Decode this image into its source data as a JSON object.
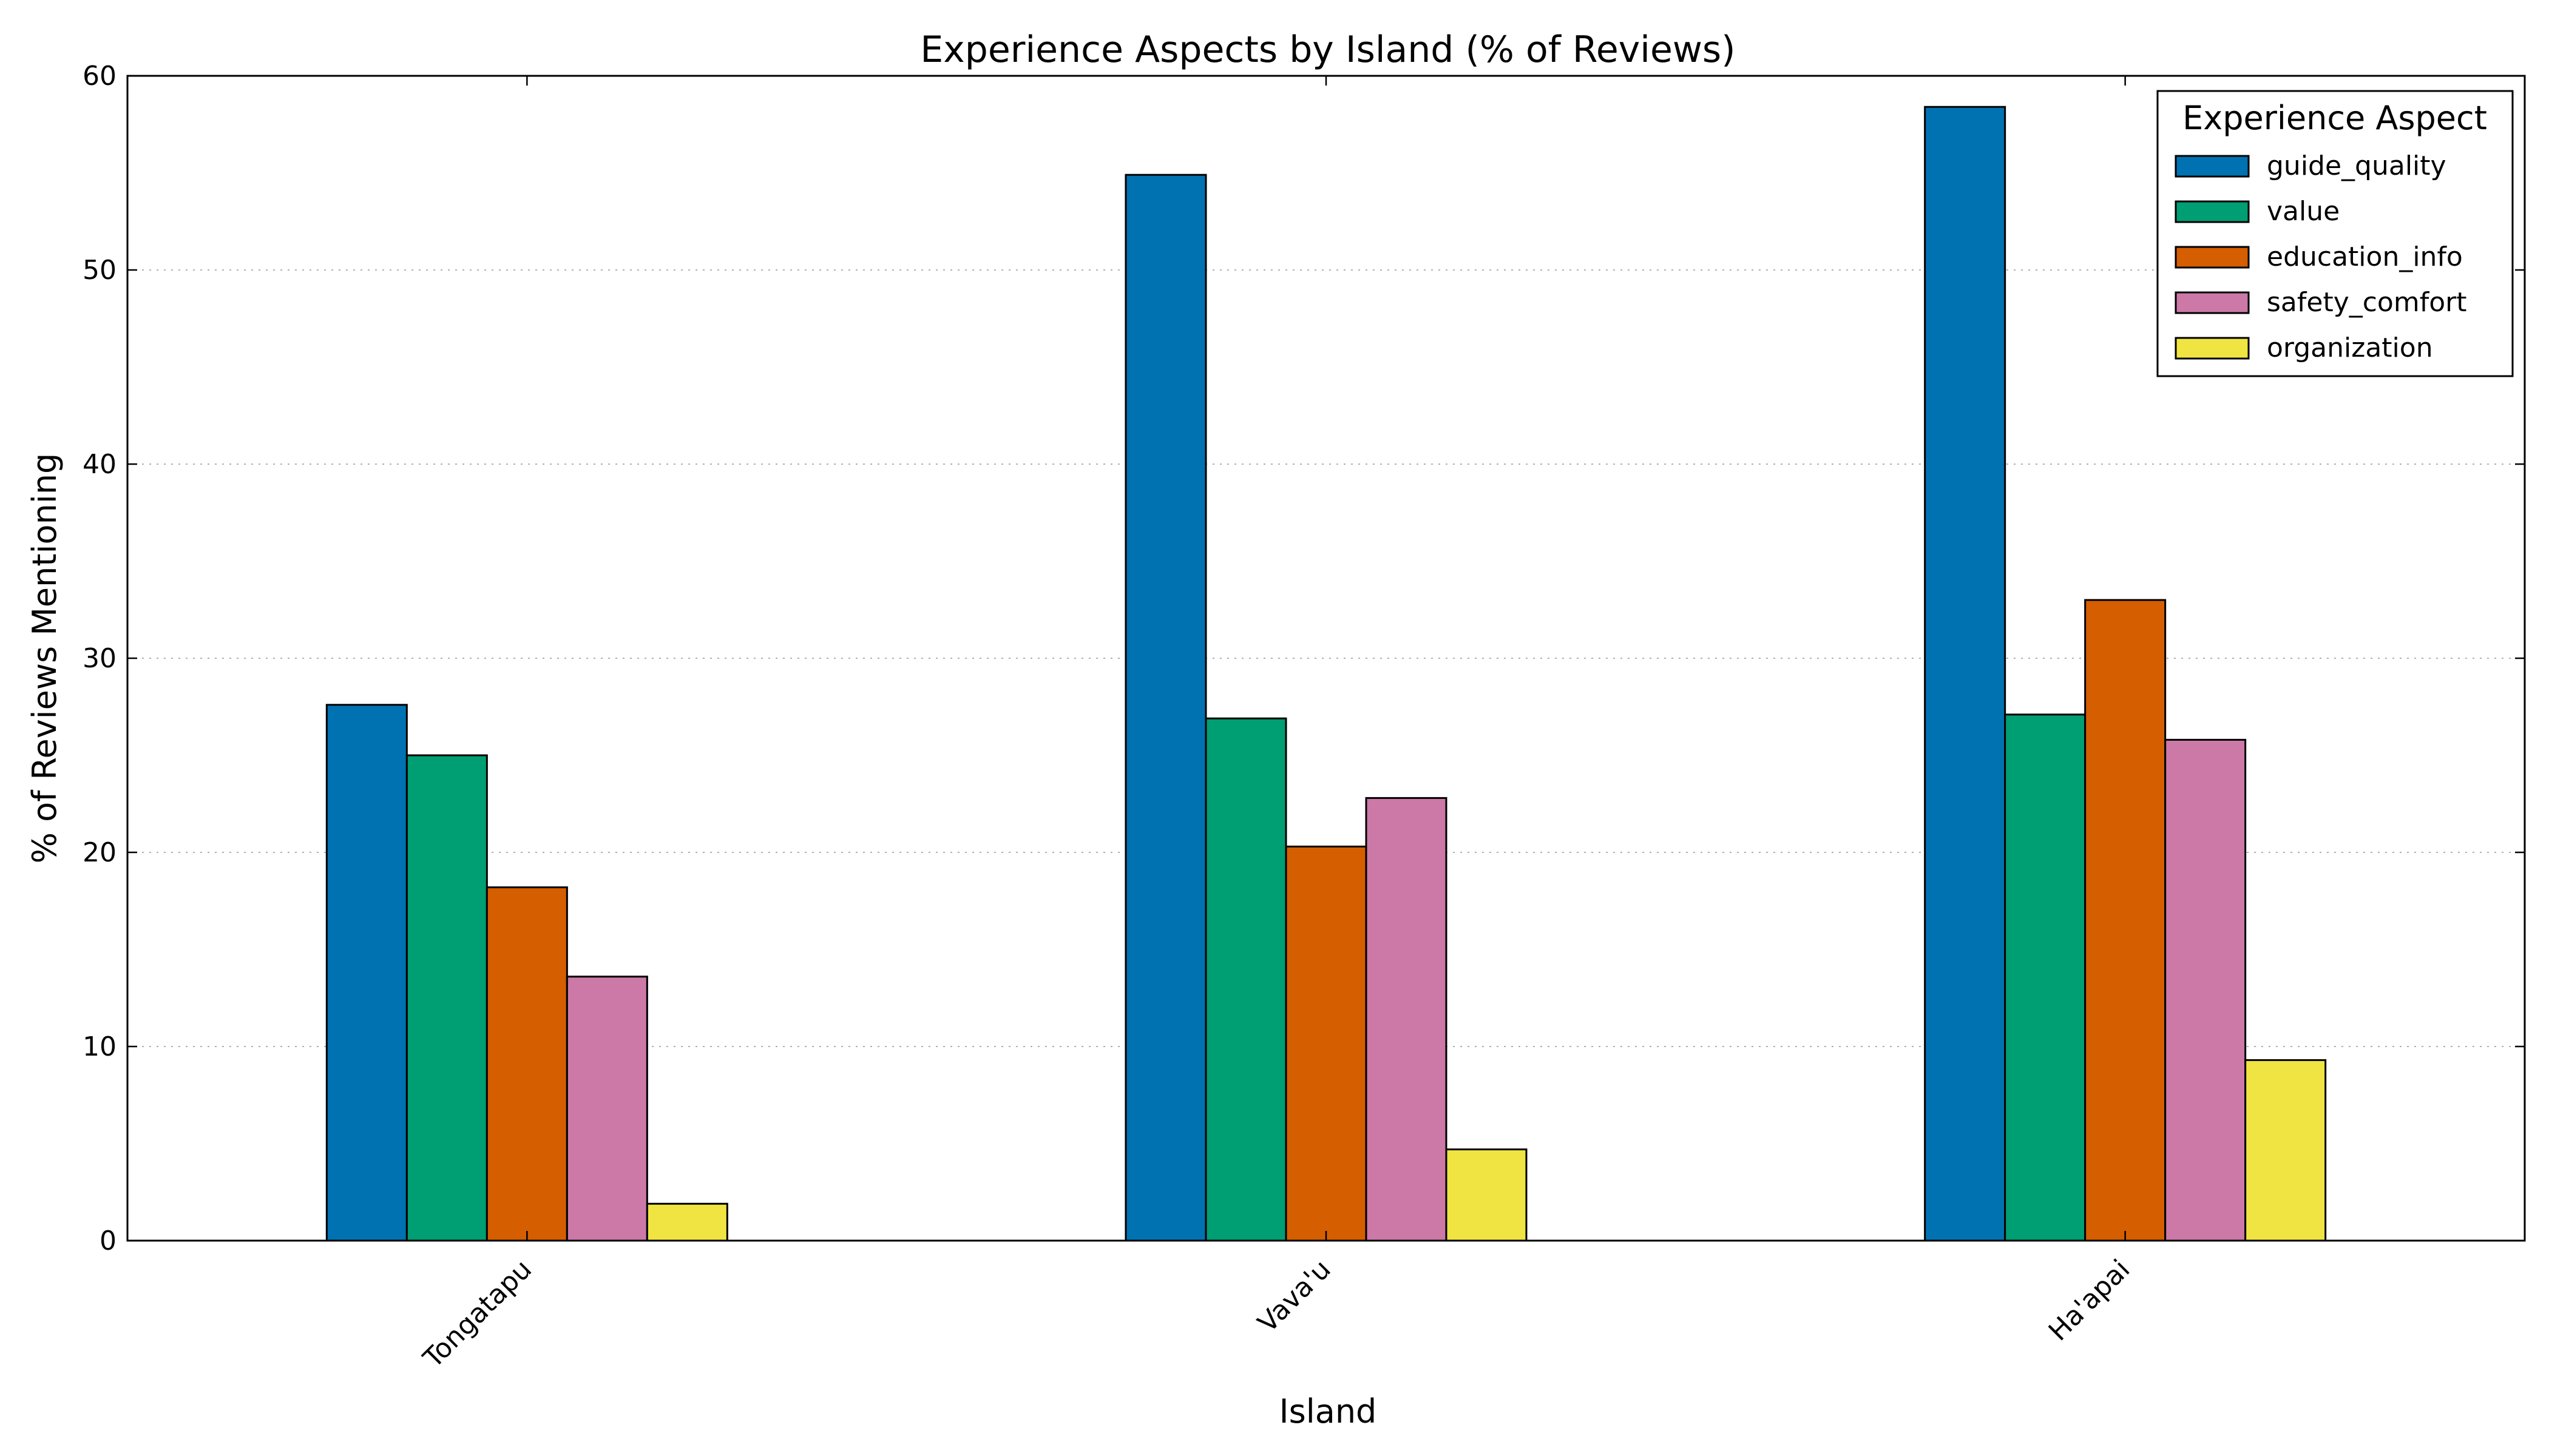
{
  "chart_data": {
    "type": "bar",
    "title": "Experience Aspects by Island (% of Reviews)",
    "xlabel": "Island",
    "ylabel": "% of Reviews Mentioning",
    "categories": [
      "Tongatapu",
      "Vava'u",
      "Ha'apai"
    ],
    "series": [
      {
        "name": "guide_quality",
        "color": "#0072b2",
        "values": [
          27.6,
          54.9,
          58.4
        ]
      },
      {
        "name": "value",
        "color": "#009e73",
        "values": [
          25.0,
          26.9,
          27.1
        ]
      },
      {
        "name": "education_info",
        "color": "#d55e00",
        "values": [
          18.2,
          20.3,
          33.0
        ]
      },
      {
        "name": "safety_comfort",
        "color": "#cc79a7",
        "values": [
          13.6,
          22.8,
          25.8
        ]
      },
      {
        "name": "organization",
        "color": "#f0e442",
        "values": [
          1.9,
          4.7,
          9.3
        ]
      }
    ],
    "ylim": [
      0,
      60
    ],
    "yticks": [
      0,
      10,
      20,
      30,
      40,
      50,
      60
    ],
    "grid": "y-dotted",
    "legend": {
      "title": "Experience Aspect",
      "placement": "top-right"
    }
  }
}
